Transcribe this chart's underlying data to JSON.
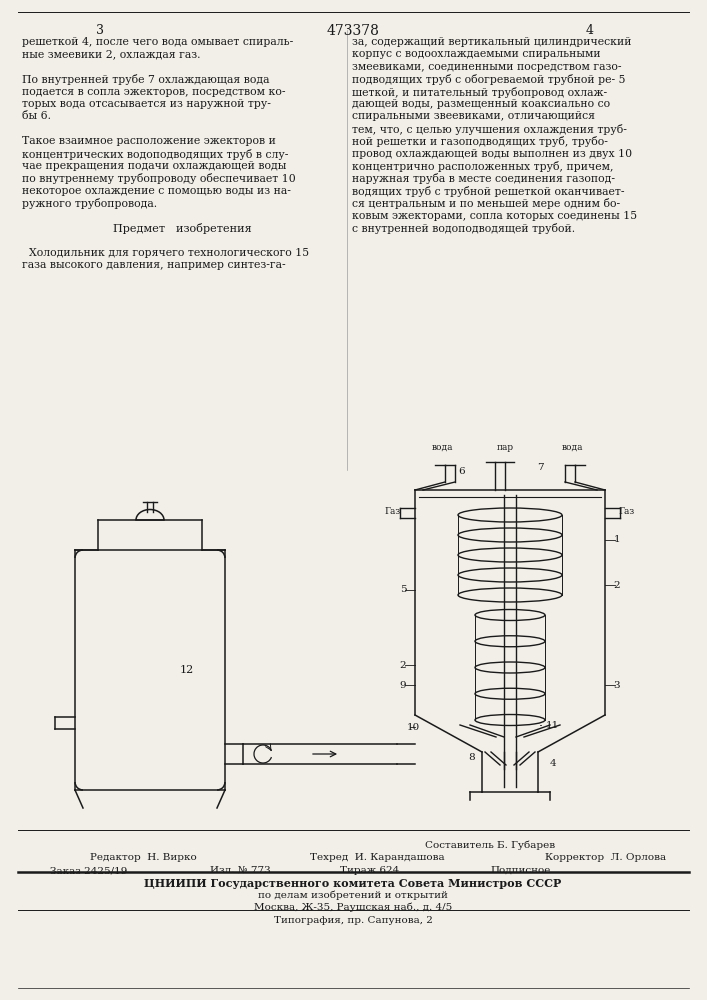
{
  "patent_number": "473378",
  "page_left": "3",
  "page_right": "4",
  "bg_color": "#f2efe9",
  "text_color": "#1a1a1a",
  "left_col_lines": [
    "решеткой 4, после чего вода омывает спираль-",
    "ные змеевики 2, охлаждая газ.",
    "",
    "По внутренней трубе 7 охлаждающая вода",
    "подается в сопла эжекторов, посредством ко-",
    "торых вода отсасывается из наружной тру-",
    "бы 6.",
    "",
    "Такое взаимное расположение эжекторов и",
    "концентрических водоподводящих труб в слу-",
    "чае прекращения подачи охлаждающей воды",
    "по внутреннему трубопроводу обеспечивает 10",
    "некоторое охлаждение с помощью воды из на-",
    "ружного трубопровода.",
    "",
    "Предмет   изобретения",
    "",
    "  Холодильник для горячего технологического 15",
    "газа высокого давления, например синтез-га-"
  ],
  "right_col_lines": [
    "за, содержащий вертикальный цилиндрический",
    "корпус с водоохлаждаемыми спиральными",
    "змеевиками, соединенными посредством газо-",
    "подводящих труб с обогреваемой трубной ре- 5",
    "шеткой, и питательный трубопровод охлаж-",
    "дающей воды, размещенный коаксиально со",
    "спиральными звеевиками, отличающийся",
    "тем, что, с целью улучшения охлаждения труб-",
    "ной решетки и газоподводящих труб, трубо-",
    "провод охлаждающей воды выполнен из двух 10",
    "концентрично расположенных труб, причем,",
    "наружная труба в месте соединения газопод-",
    "водящих труб с трубной решеткой оканчивает-",
    "ся центральным и по меньшей мере одним бо-",
    "ковым эжекторами, сопла которых соединены 15",
    "с внутренней водоподводящей трубой."
  ],
  "footer": {
    "sostavitel": "Составитель Б. Губарев",
    "redaktor": "Редактор  Н. Вирко",
    "tehred": "Техред  И. Карандашова",
    "korrektor": "Корректор  Л. Орлова",
    "zakaz": "Заказ 2425/19",
    "izl": "Изл. № 773",
    "tirazh": "Тираж 624",
    "podpisnoe": "Подписное",
    "cniip1": "ЦНИИПИ Государственного комитета Совета Министров СССР",
    "cniip2": "по делам изобретений и открытий",
    "moskva": "Москва, Ж-35, Раушская наб., д. 4/5",
    "tipografia": "Типография, пр. Сапунова, 2"
  }
}
